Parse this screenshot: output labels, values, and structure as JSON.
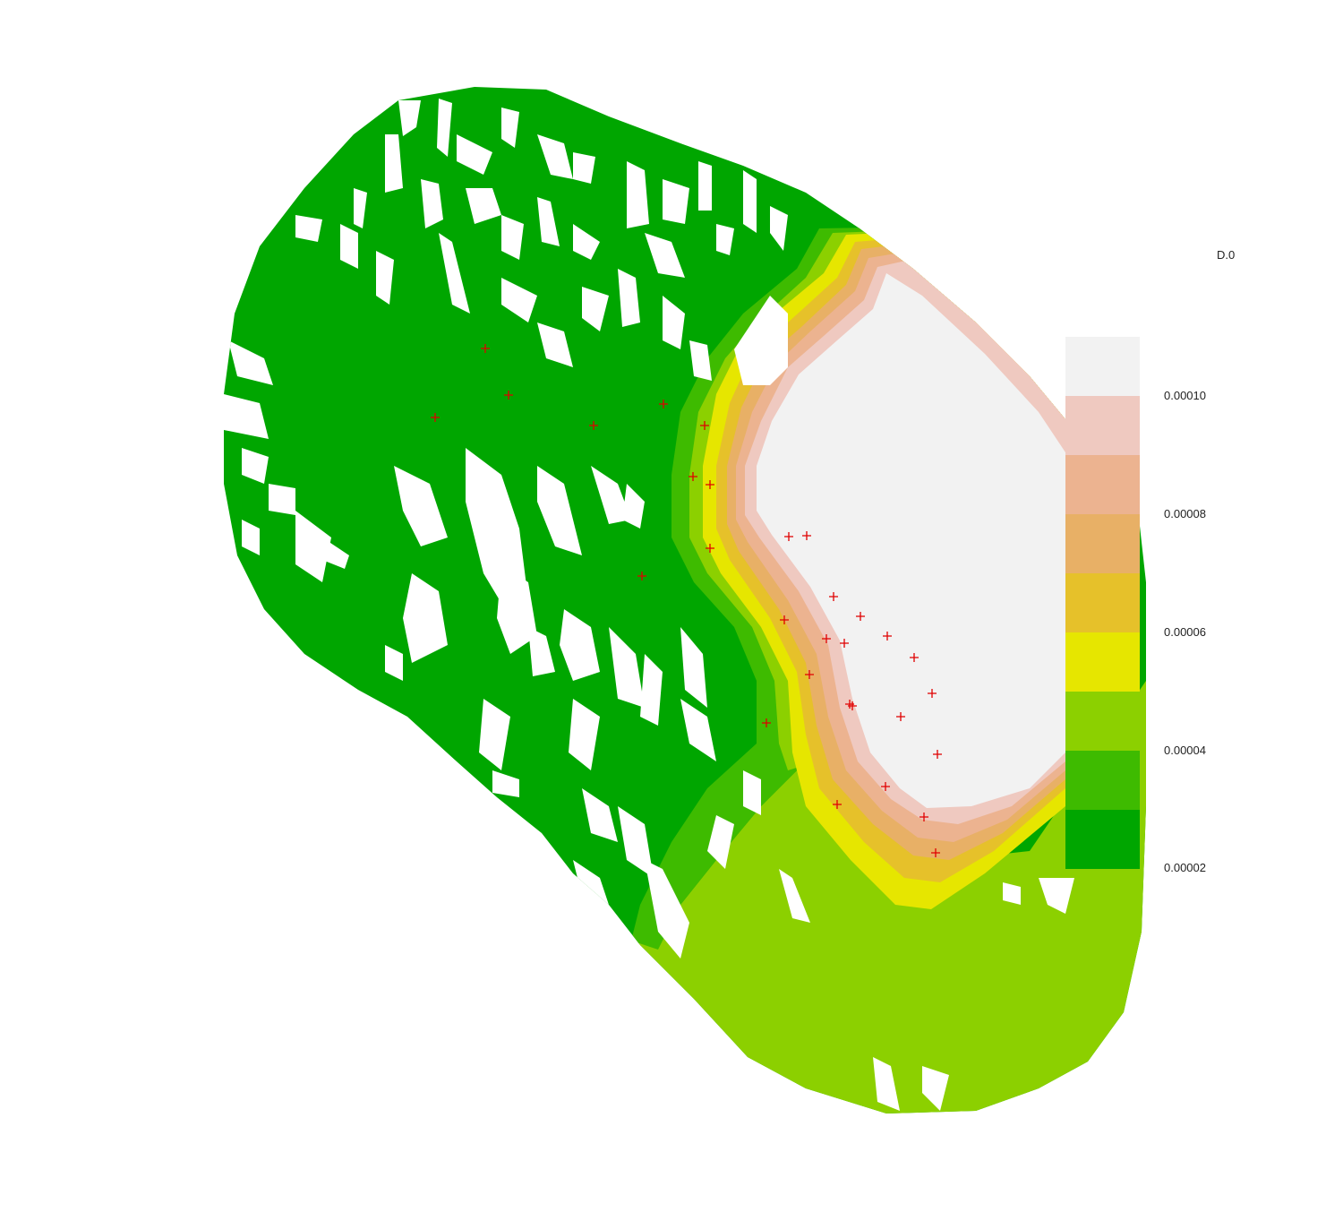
{
  "legend": {
    "title": "D.0",
    "labels": [
      "0.00010",
      "0.00008",
      "0.00006",
      "0.00004",
      "0.00002"
    ],
    "colors": [
      "#F2F2F2",
      "#EFC9C0",
      "#ECB390",
      "#E8B066",
      "#E6C12A",
      "#E6E600",
      "#8CD000",
      "#3EBB00",
      "#00A600"
    ]
  },
  "map": {
    "layer": "density raster",
    "point_marker": "plus-icon",
    "point_color": "#E00000",
    "white_gaps_color": "#FFFFFF"
  }
}
